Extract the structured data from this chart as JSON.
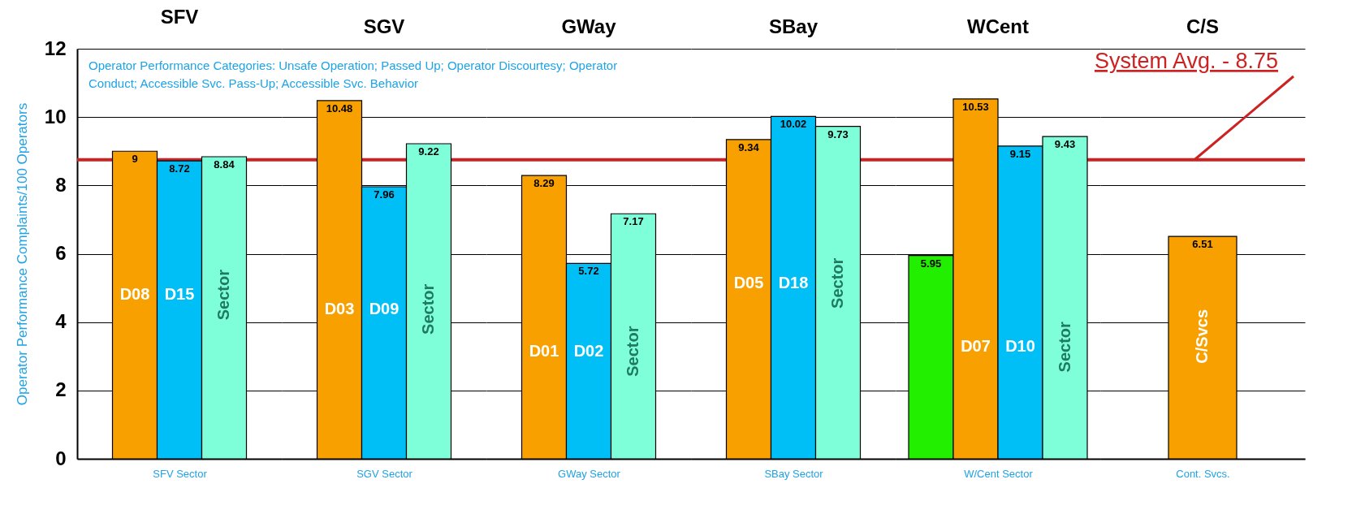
{
  "chart_data": [
    {
      "type": "bar",
      "title": "SFV",
      "xlabel": "SFV Sector",
      "ylabel": "Operator Performance Complaints/100 Operators",
      "categories": [
        "D08",
        "D15",
        "Sector"
      ],
      "values": [
        9,
        8.72,
        8.84
      ],
      "colors": [
        "#f8a000",
        "#00bff6",
        "#7fffd9"
      ],
      "ylim": [
        0,
        12
      ],
      "yticks": [
        0,
        2,
        4,
        6,
        8,
        10,
        12
      ],
      "grid": "y",
      "tick_labels": "y",
      "data_labels": true,
      "ref_lines": [
        {
          "axis": "y",
          "value": 8.75,
          "color": "#cc2222"
        }
      ],
      "annotations": [
        "Operator Performance Categories: Unsafe Operation; Passed Up; Operator Discourtesy; Operator Conduct; Accessible Svc. Pass-Up; Accessible Svc. Behavior"
      ]
    },
    {
      "type": "bar",
      "title": "SGV",
      "xlabel": "SGV Sector",
      "categories": [
        "D03",
        "D09",
        "Sector"
      ],
      "values": [
        10.48,
        7.96,
        9.22
      ],
      "colors": [
        "#f8a000",
        "#00bff6",
        "#7fffd9"
      ],
      "ylim": [
        0,
        12
      ],
      "yticks": [
        0,
        2,
        4,
        6,
        8,
        10,
        12
      ],
      "grid": "y",
      "tick_labels": false,
      "data_labels": true,
      "ref_lines": [
        {
          "axis": "y",
          "value": 8.75,
          "color": "#cc2222"
        }
      ]
    },
    {
      "type": "bar",
      "title": "GWay",
      "xlabel": "GWay Sector",
      "categories": [
        "D01",
        "D02",
        "Sector"
      ],
      "values": [
        8.29,
        5.72,
        7.17
      ],
      "colors": [
        "#f8a000",
        "#00bff6",
        "#7fffd9"
      ],
      "ylim": [
        0,
        12
      ],
      "yticks": [
        0,
        2,
        4,
        6,
        8,
        10,
        12
      ],
      "grid": "y",
      "tick_labels": false,
      "data_labels": true,
      "ref_lines": [
        {
          "axis": "y",
          "value": 8.75,
          "color": "#cc2222"
        }
      ]
    },
    {
      "type": "bar",
      "title": "SBay",
      "xlabel": "SBay Sector",
      "categories": [
        "D05",
        "D18",
        "Sector"
      ],
      "values": [
        9.34,
        10.02,
        9.73
      ],
      "colors": [
        "#f8a000",
        "#00bff6",
        "#7fffd9"
      ],
      "ylim": [
        0,
        12
      ],
      "yticks": [
        0,
        2,
        4,
        6,
        8,
        10,
        12
      ],
      "grid": "y",
      "tick_labels": false,
      "data_labels": true,
      "ref_lines": [
        {
          "axis": "y",
          "value": 8.75,
          "color": "#cc2222"
        }
      ]
    },
    {
      "type": "bar",
      "title": "WCent",
      "xlabel": "W/Cent Sector",
      "categories": [
        null,
        "D07",
        "D10",
        "Sector"
      ],
      "values": [
        5.95,
        10.53,
        9.15,
        9.43
      ],
      "colors": [
        "#22ee00",
        "#f8a000",
        "#00bff6",
        "#7fffd9"
      ],
      "ylim": [
        0,
        12
      ],
      "yticks": [
        0,
        2,
        4,
        6,
        8,
        10,
        12
      ],
      "grid": "y",
      "tick_labels": false,
      "data_labels": true,
      "ref_lines": [
        {
          "axis": "y",
          "value": 8.75,
          "color": "#cc2222"
        }
      ]
    },
    {
      "type": "bar",
      "title": "C/S",
      "xlabel": "Cont. Svcs.",
      "categories": [
        "C/Svcs"
      ],
      "values": [
        6.51
      ],
      "colors": [
        "#f8a000"
      ],
      "ylim": [
        0,
        12
      ],
      "yticks": [
        0,
        2,
        4,
        6,
        8,
        10,
        12
      ],
      "grid": "y",
      "tick_labels": false,
      "data_labels": true,
      "ref_lines": [
        {
          "axis": "y",
          "value": 8.75,
          "label": "System Avg. - 8.75",
          "color": "#cc2222"
        }
      ]
    }
  ]
}
